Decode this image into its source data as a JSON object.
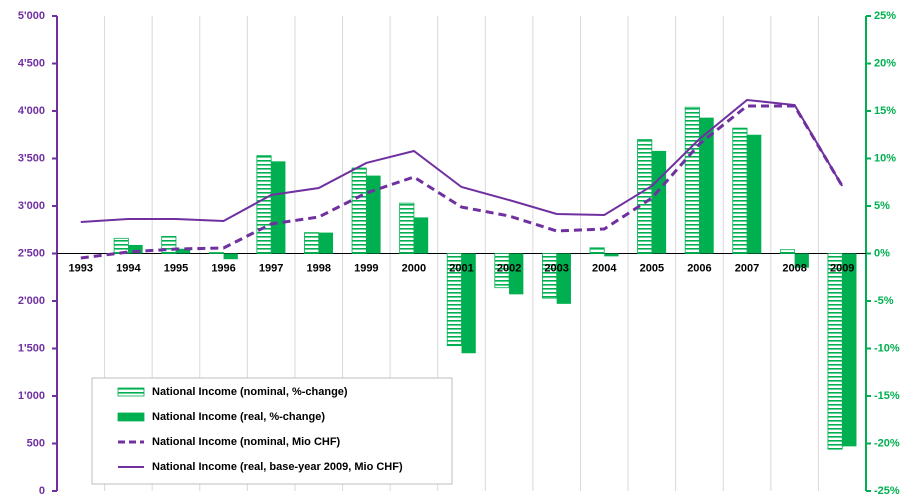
{
  "chart_data": {
    "type": "combo",
    "categories": [
      "1993",
      "1994",
      "1995",
      "1996",
      "1997",
      "1998",
      "1999",
      "2000",
      "2001",
      "2002",
      "2003",
      "2004",
      "2005",
      "2006",
      "2007",
      "2008",
      "2009"
    ],
    "ylim": [
      0,
      5000
    ],
    "yticks": [
      0,
      500,
      {
        "value": 1000,
        "label": "1'000"
      },
      {
        "value": 1500,
        "label": "1'500"
      },
      {
        "value": 2000,
        "label": "2'000"
      },
      {
        "value": 2500,
        "label": "2'500"
      },
      {
        "value": 3000,
        "label": "3'000"
      },
      {
        "value": 3500,
        "label": "3'500"
      },
      {
        "value": 4000,
        "label": "4'000"
      },
      {
        "value": 4500,
        "label": "4'500"
      },
      {
        "value": 5000,
        "label": "5'000"
      }
    ],
    "y2lim": [
      -25,
      25
    ],
    "y2ticks": [
      {
        "value": -25,
        "label": "-25%"
      },
      {
        "value": -20,
        "label": "-20%"
      },
      {
        "value": -15,
        "label": "-15%"
      },
      {
        "value": -10,
        "label": "-10%"
      },
      {
        "value": -5,
        "label": "-5%"
      },
      {
        "value": 0,
        "label": "0%"
      },
      {
        "value": 5,
        "label": "5%"
      },
      {
        "value": 10,
        "label": "10%"
      },
      {
        "value": 15,
        "label": "15%"
      },
      {
        "value": 20,
        "label": "20%"
      },
      {
        "value": 25,
        "label": "25%"
      }
    ],
    "y_color": "#7030a0",
    "y2_color": "#00b050",
    "legend": "lower left",
    "series": [
      {
        "name": "National Income (nominal, %-change)",
        "type": "bar",
        "axis": "y2",
        "color": "#00b050",
        "pattern": "hatched",
        "values": [
          null,
          1.6,
          1.8,
          0.1,
          10.3,
          2.2,
          9.0,
          5.3,
          -9.7,
          -3.6,
          -4.7,
          0.6,
          12.0,
          15.4,
          13.2,
          0.4,
          -20.6
        ]
      },
      {
        "name": "National Income (real, %-change)",
        "type": "bar",
        "axis": "y2",
        "color": "#00b050",
        "pattern": "solid",
        "values": [
          null,
          0.9,
          0.5,
          -0.6,
          9.7,
          2.2,
          8.2,
          3.8,
          -10.5,
          -4.3,
          -5.3,
          -0.3,
          10.8,
          14.3,
          12.5,
          -1.5,
          -20.3
        ]
      },
      {
        "name": "National Income (nominal, Mio CHF)",
        "type": "line",
        "color": "#7030a0",
        "dashed": true,
        "values": [
          2453,
          2516,
          2547,
          2558,
          2811,
          2884,
          3137,
          3305,
          2989,
          2895,
          2737,
          2758,
          3084,
          3653,
          4053,
          4053,
          3211
        ]
      },
      {
        "name": "National Income (real, base-year 2009, Mio CHF)",
        "type": "line",
        "color": "#7030a0",
        "dashed": false,
        "values": [
          2832,
          2863,
          2863,
          2842,
          3116,
          3189,
          3453,
          3579,
          3200,
          3063,
          2916,
          2905,
          3211,
          3705,
          4116,
          4063,
          3211
        ]
      }
    ]
  }
}
